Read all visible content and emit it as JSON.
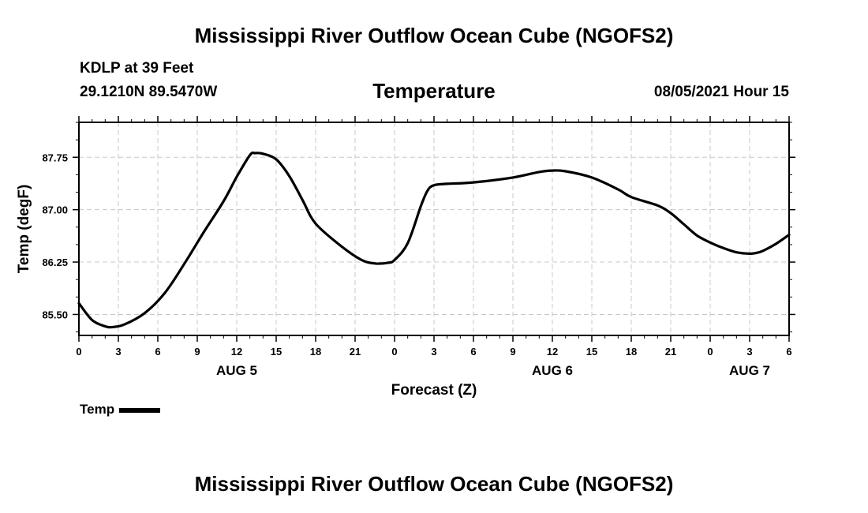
{
  "header": {
    "title": "Mississippi River Outflow Ocean Cube (NGOFS2)",
    "station": "KDLP at 39 Feet",
    "coordinates": "29.1210N  89.5470W",
    "variable": "Temperature",
    "datetime": "08/05/2021 Hour 15"
  },
  "footer": {
    "title": "Mississippi River Outflow Ocean Cube (NGOFS2)"
  },
  "legend": {
    "label": "Temp"
  },
  "chart_data": {
    "type": "line",
    "title": "Temperature",
    "xlabel": "Forecast (Z)",
    "ylabel": "Temp (degF)",
    "x_unit": "hours from 08/05/2021 00Z",
    "xlim": [
      0,
      54
    ],
    "ylim": [
      85.2,
      88.25
    ],
    "grid": true,
    "legend_position": "bottom-left",
    "x_ticks": [
      0,
      3,
      6,
      9,
      12,
      15,
      18,
      21,
      24,
      27,
      30,
      33,
      36,
      39,
      42,
      45,
      48,
      51,
      54
    ],
    "x_tick_labels": [
      "0",
      "3",
      "6",
      "9",
      "12",
      "15",
      "18",
      "21",
      "0",
      "3",
      "6",
      "9",
      "12",
      "15",
      "18",
      "21",
      "0",
      "3",
      "6"
    ],
    "y_ticks": [
      85.5,
      86.25,
      87.0,
      87.75
    ],
    "y_tick_labels": [
      "85.50",
      "86.25",
      "87.00",
      "87.75"
    ],
    "date_labels": [
      {
        "x": 12,
        "label": "AUG 5"
      },
      {
        "x": 36,
        "label": "AUG 6"
      },
      {
        "x": 51,
        "label": "AUG 7"
      }
    ],
    "series": [
      {
        "name": "Temp",
        "x": [
          0,
          1,
          2,
          2.6,
          3.5,
          5,
          6.5,
          8,
          9.5,
          11,
          12,
          13,
          13.4,
          14,
          15,
          16,
          17,
          18,
          20,
          21.5,
          22.5,
          23.5,
          24,
          25,
          26,
          26.5,
          27,
          28,
          30,
          33,
          35,
          36,
          37,
          39,
          41,
          42,
          44,
          45,
          46,
          47,
          48,
          49,
          50,
          51,
          51.5,
          52,
          53,
          54
        ],
        "y": [
          85.66,
          85.42,
          85.33,
          85.32,
          85.36,
          85.52,
          85.8,
          86.22,
          86.68,
          87.12,
          87.47,
          87.78,
          87.81,
          87.8,
          87.72,
          87.48,
          87.14,
          86.8,
          86.47,
          86.28,
          86.23,
          86.24,
          86.28,
          86.52,
          87.05,
          87.27,
          87.35,
          87.37,
          87.39,
          87.46,
          87.54,
          87.56,
          87.55,
          87.46,
          87.29,
          87.18,
          87.06,
          86.95,
          86.79,
          86.63,
          86.53,
          86.45,
          86.39,
          86.37,
          86.38,
          86.41,
          86.51,
          86.64
        ]
      }
    ]
  }
}
